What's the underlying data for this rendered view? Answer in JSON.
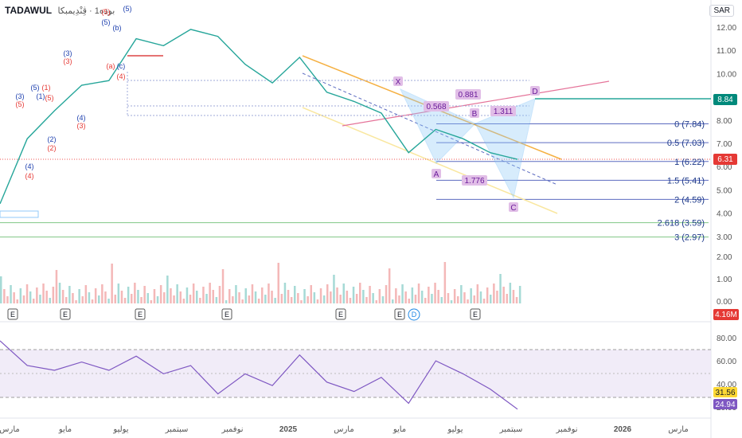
{
  "header": {
    "symbol": "TADAWUL",
    "subtitle": "بوده1 · ڤِنْدِيمبكا"
  },
  "currency": "SAR",
  "price_axis": {
    "ticks": [
      "12.00",
      "11.00",
      "10.00",
      "9.00",
      "8.00",
      "7.00",
      "6.00",
      "5.00",
      "4.00",
      "3.00"
    ]
  },
  "volume_axis": {
    "ticks": [
      "2.00",
      "1.00",
      "0.00"
    ],
    "last": "4.16M"
  },
  "rsi_axis": {
    "ticks": [
      "80.00",
      "60.00",
      "40.00",
      "20.00"
    ],
    "values": [
      "31.56",
      "24.94"
    ]
  },
  "badges": {
    "green": "8.84",
    "red": "6.31"
  },
  "time_axis": [
    "مارس",
    "مايو",
    "يوليو",
    "سبتمبر",
    "نوفمبر",
    "2025",
    "مارس",
    "مايو",
    "يوليو",
    "سبتمبر",
    "نوفمبر",
    "2026",
    "مارس"
  ],
  "fib_levels": [
    {
      "label": "0 (7.84)",
      "price": 7.84
    },
    {
      "label": "0.5 (7.03)",
      "price": 7.03
    },
    {
      "label": "1 (6.22)",
      "price": 6.22
    },
    {
      "label": "1.5 (5.41)",
      "price": 5.41
    },
    {
      "label": "2 (4.59)",
      "price": 4.59
    },
    {
      "label": "2.618 (3.59)",
      "price": 3.59
    },
    {
      "label": "3 (2.97)",
      "price": 2.97
    }
  ],
  "harmonic": {
    "points": [
      "X",
      "A",
      "B",
      "C",
      "D"
    ],
    "ratios": [
      "0.568",
      "0.881",
      "1.311",
      "1.776"
    ]
  },
  "wave_labels": [
    "(5)",
    "(5)",
    "(b)",
    "(a)",
    "(c)",
    "(4)",
    "(3)",
    "(3)",
    "(5)",
    "(1)",
    "(1)",
    "(5)",
    "(2)",
    "(2)",
    "(4)",
    "(4)",
    "(4)",
    "(3)",
    "(3)",
    "(5)",
    "(5)"
  ],
  "event_markers": [
    "E",
    "E",
    "E",
    "E",
    "E",
    "E",
    "D",
    "E"
  ],
  "chart_data": {
    "type": "line",
    "series": [
      {
        "name": "price",
        "x": [
          "2024-02",
          "2024-03",
          "2024-04",
          "2024-05",
          "2024-06",
          "2024-07",
          "2024-08",
          "2024-09",
          "2024-10",
          "2024-11",
          "2024-12",
          "2025-01",
          "2025-02",
          "2025-03",
          "2025-04",
          "2025-05",
          "2025-06",
          "2025-07",
          "2025-08",
          "2025-09"
        ],
        "values": [
          4.4,
          7.2,
          8.4,
          9.5,
          9.7,
          11.5,
          11.2,
          11.9,
          11.6,
          10.4,
          9.6,
          10.7,
          9.2,
          8.8,
          8.3,
          6.6,
          7.6,
          7.2,
          6.6,
          6.31
        ]
      },
      {
        "name": "rsi",
        "values": [
          83,
          62,
          58,
          65,
          58,
          70,
          55,
          62,
          38,
          55,
          45,
          71,
          48,
          40,
          52,
          30,
          66,
          55,
          42,
          25
        ]
      }
    ],
    "ylim": [
      2.8,
      12.5
    ],
    "rsi_ylim": [
      15,
      88
    ]
  }
}
